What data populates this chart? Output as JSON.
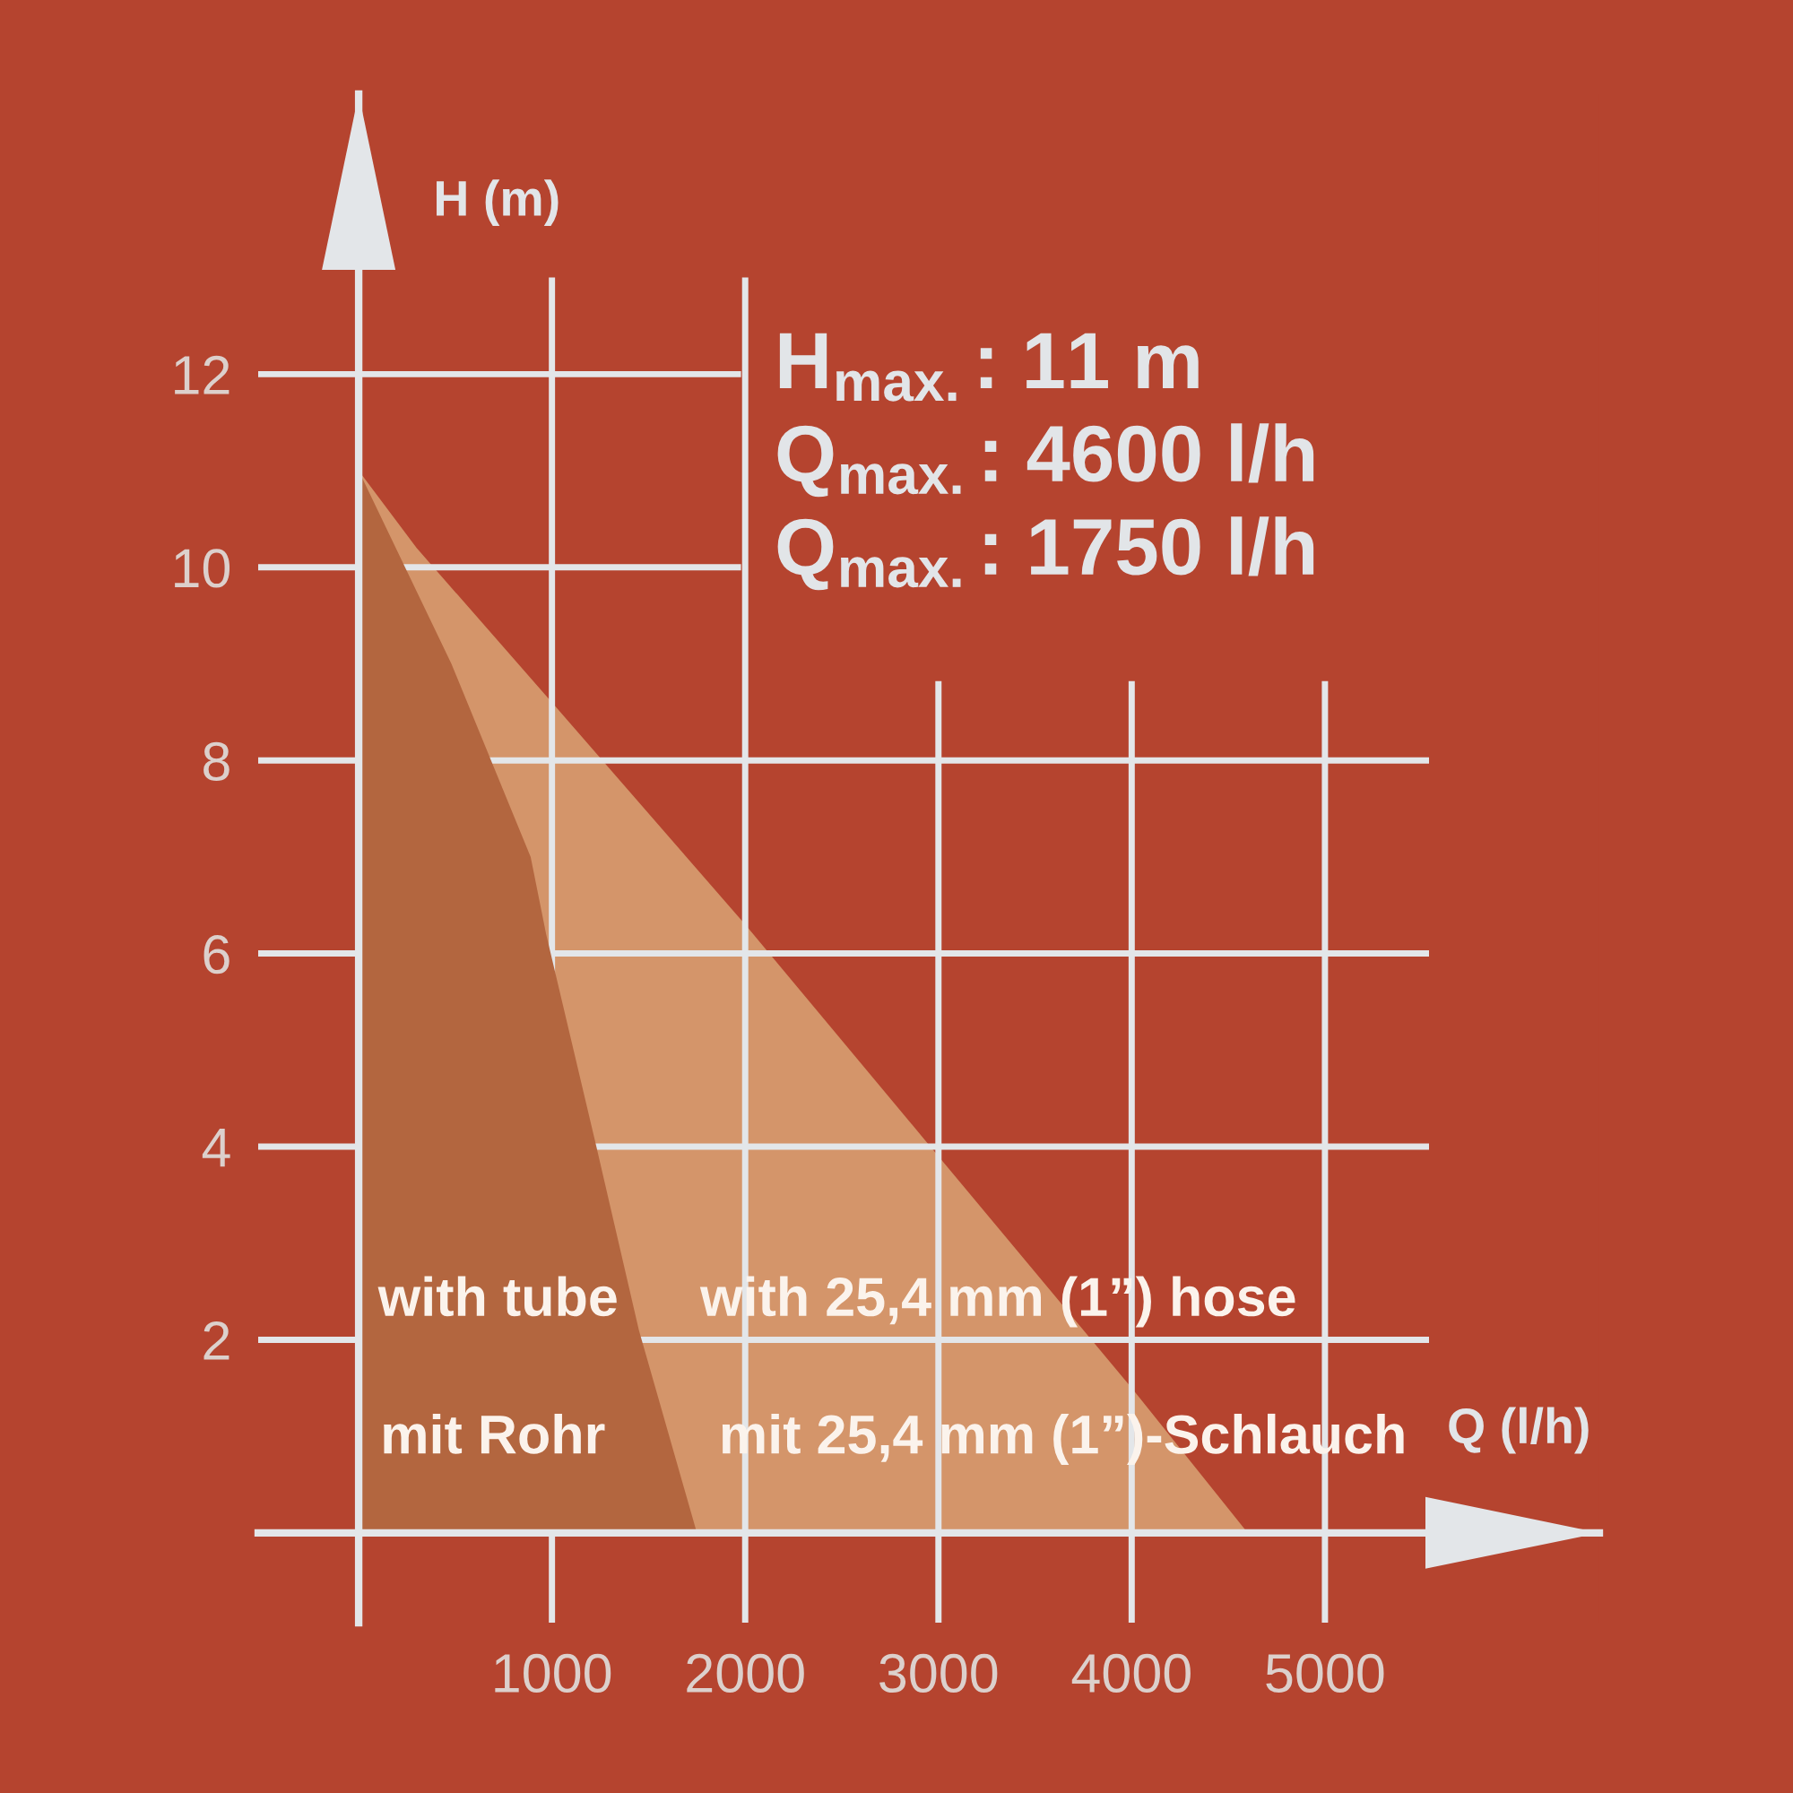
{
  "chart_data": {
    "type": "area",
    "xlabel": "Q (l/h)",
    "ylabel": "H (m)",
    "series": [
      {
        "color": "#d4956a",
        "x": [
          0,
          300,
          1000,
          2000,
          3000,
          4000,
          4600
        ],
        "values": [
          11,
          10.2,
          8.6,
          6.3,
          3.9,
          1.5,
          0
        ]
      },
      {
        "color": "#b3663f",
        "x": [
          0,
          480,
          890,
          970,
          1230,
          1450,
          1750
        ],
        "values": [
          11,
          9.0,
          7.0,
          6.2,
          4.0,
          2.1,
          0
        ]
      }
    ],
    "xlim": [
      -520,
      6420
    ],
    "ylim": [
      -0.93,
      14.9
    ],
    "xticks": [
      1000,
      2000,
      3000,
      4000,
      5000
    ],
    "yticks": [
      2,
      4,
      6,
      8,
      10,
      12
    ],
    "grid": true,
    "annotations": [
      "H$_{max.}$: 11 m",
      "Q$_{max.}$: 4600 l/h",
      "Q$_{max.}$: 1750 l/h",
      "with tube",
      "with 25,4 mm (1”) hose",
      "mit Rohr",
      "mit 25,4 mm (1”)-Schlauch"
    ]
  }
}
